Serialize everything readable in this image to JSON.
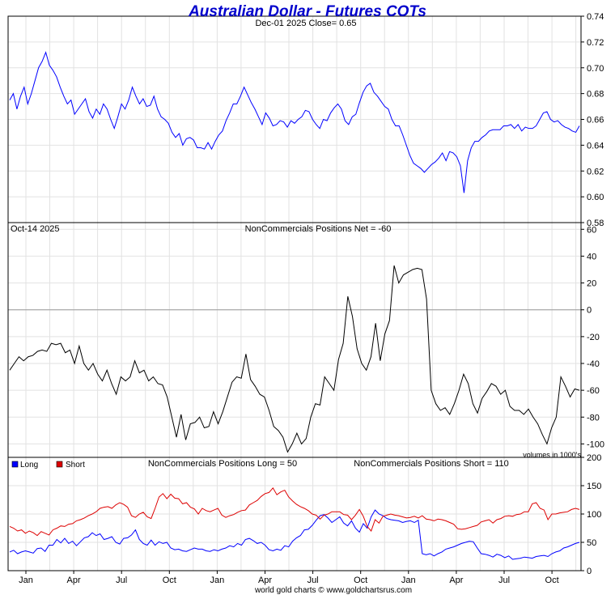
{
  "header": {
    "title": "Australian Dollar - Futures COTs",
    "subtitle": "Dec-01  2025   Close= 0.65",
    "footer": "world gold charts © www.goldchartsrus.com"
  },
  "colors": {
    "title": "#0000cc",
    "price_line": "#0000ff",
    "net_line": "#000000",
    "long_line": "#0000ff",
    "short_line": "#dd0000",
    "grid": "#e2e2e2"
  },
  "x_axis": {
    "labels": [
      "Jan",
      "Apr",
      "Jul",
      "Oct",
      "Jan",
      "Apr",
      "Jul",
      "Oct",
      "Jan",
      "Apr",
      "Jul",
      "Oct"
    ]
  },
  "chart_data": [
    {
      "type": "line",
      "panel": "price",
      "ylim": [
        0.58,
        0.74
      ],
      "yticks": [
        "0.74",
        "0.72",
        "0.70",
        "0.68",
        "0.66",
        "0.64",
        "0.62",
        "0.60",
        "0.58"
      ],
      "series": [
        {
          "name": "",
          "values": [
            0.675,
            0.68,
            0.668,
            0.678,
            0.685,
            0.672,
            0.68,
            0.69,
            0.7,
            0.705,
            0.712,
            0.702,
            0.698,
            0.693,
            0.685,
            0.678,
            0.672,
            0.675,
            0.664,
            0.668,
            0.672,
            0.676,
            0.666,
            0.661,
            0.668,
            0.664,
            0.672,
            0.668,
            0.66,
            0.653,
            0.662,
            0.672,
            0.668,
            0.675,
            0.685,
            0.678,
            0.672,
            0.676,
            0.67,
            0.671,
            0.678,
            0.668,
            0.662,
            0.66,
            0.657,
            0.65,
            0.646,
            0.649,
            0.64,
            0.645,
            0.646,
            0.644,
            0.638,
            0.638,
            0.637,
            0.642,
            0.637,
            0.643,
            0.648,
            0.651,
            0.659,
            0.665,
            0.672,
            0.672,
            0.678,
            0.685,
            0.679,
            0.673,
            0.668,
            0.662,
            0.656,
            0.665,
            0.661,
            0.655,
            0.656,
            0.659,
            0.658,
            0.654,
            0.659,
            0.657,
            0.66,
            0.662,
            0.667,
            0.666,
            0.66,
            0.656,
            0.653,
            0.66,
            0.659,
            0.665,
            0.669,
            0.672,
            0.668,
            0.659,
            0.656,
            0.662,
            0.664,
            0.673,
            0.681,
            0.686,
            0.688,
            0.681,
            0.678,
            0.674,
            0.67,
            0.668,
            0.66,
            0.655,
            0.655,
            0.648,
            0.64,
            0.632,
            0.626,
            0.624,
            0.622,
            0.619,
            0.622,
            0.625,
            0.627,
            0.63,
            0.634,
            0.628,
            0.635,
            0.634,
            0.631,
            0.624,
            0.603,
            0.628,
            0.638,
            0.643,
            0.643,
            0.646,
            0.648,
            0.651,
            0.652,
            0.652,
            0.652,
            0.655,
            0.655,
            0.656,
            0.653,
            0.656,
            0.651,
            0.654,
            0.653,
            0.653,
            0.655,
            0.66,
            0.665,
            0.666,
            0.66,
            0.658,
            0.659,
            0.656,
            0.654,
            0.653,
            0.651,
            0.65,
            0.655
          ]
        }
      ]
    },
    {
      "type": "line",
      "panel": "net",
      "title": "NonCommercials Positions Net = -60",
      "date_label": "Oct-14  2025",
      "units_note": "volumes in 1000's",
      "ylim": [
        -110,
        65
      ],
      "yticks": [
        "60",
        "40",
        "20",
        "0",
        "-20",
        "-40",
        "-60",
        "-80",
        "-100"
      ],
      "series": [
        {
          "name": "",
          "values": [
            -45,
            -40,
            -35,
            -38,
            -35,
            -34,
            -31,
            -30,
            -31,
            -25,
            -26,
            -25,
            -32,
            -30,
            -40,
            -27,
            -40,
            -45,
            -40,
            -48,
            -53,
            -45,
            -55,
            -63,
            -50,
            -53,
            -50,
            -38,
            -47,
            -45,
            -53,
            -50,
            -55,
            -56,
            -65,
            -80,
            -95,
            -78,
            -97,
            -85,
            -84,
            -80,
            -88,
            -87,
            -76,
            -85,
            -76,
            -65,
            -54,
            -50,
            -51,
            -33,
            -52,
            -57,
            -63,
            -65,
            -75,
            -87,
            -90,
            -95,
            -106,
            -100,
            -92,
            -100,
            -96,
            -80,
            -70,
            -71,
            -50,
            -55,
            -60,
            -37,
            -25,
            10,
            -5,
            -29,
            -40,
            -45,
            -35,
            -10,
            -38,
            -18,
            -8,
            33,
            20,
            26,
            28,
            30,
            31,
            30,
            8,
            -60,
            -70,
            -75,
            -73,
            -78,
            -70,
            -60,
            -48,
            -55,
            -70,
            -77,
            -66,
            -61,
            -55,
            -57,
            -63,
            -60,
            -72,
            -75,
            -75,
            -78,
            -74,
            -80,
            -85,
            -93,
            -100,
            -88,
            -80,
            -50,
            -57,
            -65,
            -59,
            -60
          ]
        }
      ]
    },
    {
      "type": "line",
      "panel": "long_short",
      "title_long": "NonCommercials Positions Long = 50",
      "title_short": "NonCommercials Positions Short = 110",
      "legend": [
        "Long",
        "Short"
      ],
      "legend_position": "top-left",
      "ylim": [
        0,
        200
      ],
      "yticks": [
        "200",
        "150",
        "100",
        "50",
        "0"
      ],
      "series": [
        {
          "name": "Long",
          "values": [
            33,
            36,
            30,
            33,
            35,
            33,
            31,
            39,
            40,
            34,
            45,
            45,
            55,
            49,
            57,
            48,
            52,
            44,
            51,
            58,
            60,
            67,
            62,
            65,
            55,
            57,
            60,
            50,
            47,
            57,
            58,
            63,
            72,
            55,
            48,
            45,
            54,
            45,
            51,
            48,
            50,
            40,
            37,
            38,
            35,
            34,
            37,
            40,
            38,
            38,
            35,
            34,
            37,
            35,
            38,
            40,
            44,
            42,
            48,
            45,
            55,
            57,
            53,
            48,
            50,
            45,
            37,
            35,
            38,
            36,
            44,
            42,
            52,
            58,
            62,
            72,
            73,
            80,
            89,
            97,
            99,
            93,
            85,
            90,
            95,
            84,
            79,
            88,
            75,
            68,
            83,
            75,
            95,
            107,
            100,
            97,
            92,
            90,
            89,
            88,
            85,
            87,
            88,
            85,
            89,
            30,
            28,
            30,
            26,
            30,
            33,
            38,
            40,
            42,
            45,
            48,
            50,
            52,
            51,
            40,
            30,
            29,
            27,
            24,
            29,
            27,
            23,
            26,
            20,
            21,
            22,
            24,
            23,
            22,
            25,
            26,
            27,
            25,
            30,
            33,
            35,
            40,
            42,
            45,
            48,
            50
          ]
        },
        {
          "name": "Short",
          "values": [
            78,
            75,
            70,
            72,
            66,
            70,
            67,
            62,
            69,
            66,
            63,
            72,
            75,
            79,
            78,
            82,
            83,
            88,
            90,
            93,
            97,
            100,
            104,
            110,
            112,
            113,
            110,
            116,
            120,
            117,
            112,
            97,
            94,
            100,
            103,
            95,
            92,
            110,
            130,
            136,
            127,
            135,
            128,
            127,
            118,
            120,
            112,
            109,
            100,
            110,
            106,
            104,
            107,
            110,
            98,
            94,
            97,
            99,
            103,
            106,
            107,
            116,
            120,
            124,
            131,
            136,
            138,
            146,
            134,
            139,
            142,
            130,
            123,
            117,
            113,
            110,
            106,
            100,
            98,
            91,
            98,
            100,
            104,
            104,
            104,
            99,
            98,
            90,
            98,
            108,
            96,
            78,
            70,
            90,
            84,
            96,
            98,
            100,
            98,
            97,
            95,
            93,
            94,
            96,
            93,
            97,
            91,
            90,
            88,
            91,
            90,
            88,
            85,
            82,
            74,
            73,
            74,
            76,
            78,
            80,
            86,
            88,
            90,
            84,
            90,
            92,
            96,
            97,
            96,
            99,
            100,
            104,
            104,
            118,
            120,
            110,
            107,
            90,
            100,
            100,
            102,
            103,
            104,
            108,
            110,
            108
          ]
        }
      ]
    }
  ]
}
